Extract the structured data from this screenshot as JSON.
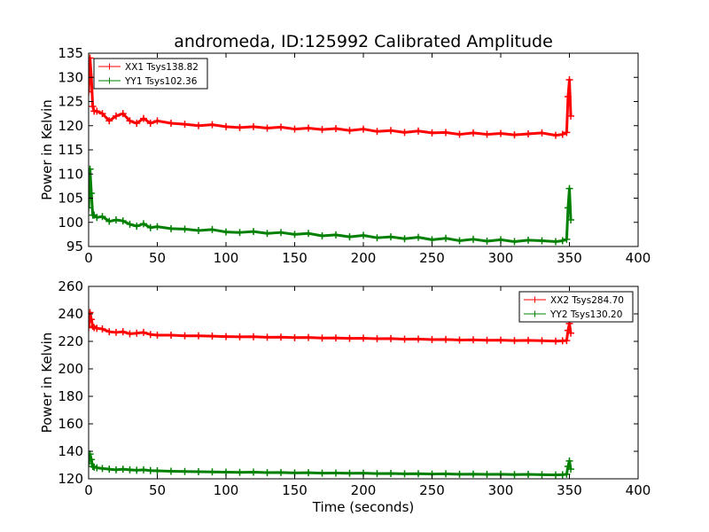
{
  "figure": {
    "title": "andromeda, ID:125992 Calibrated Amplitude"
  },
  "chart_data": [
    {
      "type": "line",
      "title": "andromeda, ID:125992 Calibrated Amplitude",
      "xlabel": "",
      "ylabel": "Power in Kelvin",
      "xlim": [
        0,
        400
      ],
      "ylim": [
        95,
        135
      ],
      "xticks": [
        0,
        50,
        100,
        150,
        200,
        250,
        300,
        350,
        400
      ],
      "yticks": [
        95,
        100,
        105,
        110,
        115,
        120,
        125,
        130,
        135
      ],
      "grid": false,
      "legend_position": "top-left",
      "series": [
        {
          "name": "XX1 Tsys138.82",
          "color": "#ff0000",
          "marker": "+",
          "x": [
            0,
            1,
            2,
            3,
            4,
            6,
            10,
            15,
            20,
            25,
            30,
            35,
            40,
            45,
            50,
            60,
            70,
            80,
            90,
            100,
            110,
            120,
            130,
            140,
            150,
            160,
            170,
            180,
            190,
            200,
            210,
            220,
            230,
            240,
            250,
            260,
            270,
            280,
            290,
            300,
            310,
            320,
            330,
            340,
            345,
            348,
            349,
            350,
            351
          ],
          "y": [
            127,
            134,
            130,
            124,
            123,
            123,
            122.5,
            121,
            122,
            122.5,
            121,
            120.5,
            121.5,
            120.5,
            121,
            120.5,
            120.3,
            120,
            120.2,
            119.8,
            119.6,
            119.8,
            119.5,
            119.7,
            119.3,
            119.5,
            119.2,
            119.4,
            119,
            119.3,
            118.8,
            119,
            118.6,
            118.9,
            118.5,
            118.6,
            118.2,
            118.5,
            118.2,
            118.4,
            118.1,
            118.3,
            118.5,
            118,
            118.2,
            118.6,
            126,
            129.5,
            122
          ]
        },
        {
          "name": "YY1 Tsys102.36",
          "color": "#008000",
          "marker": "+",
          "x": [
            0,
            1,
            2,
            3,
            4,
            6,
            10,
            15,
            20,
            25,
            30,
            35,
            40,
            45,
            50,
            60,
            70,
            80,
            90,
            100,
            110,
            120,
            130,
            140,
            150,
            160,
            170,
            180,
            190,
            200,
            210,
            220,
            230,
            240,
            250,
            260,
            270,
            280,
            290,
            300,
            310,
            320,
            330,
            340,
            345,
            348,
            349,
            350,
            351
          ],
          "y": [
            103,
            111,
            106,
            101.5,
            101.5,
            101,
            101.2,
            100.2,
            100.5,
            100.3,
            99.6,
            99.2,
            99.7,
            98.9,
            99.1,
            98.7,
            98.6,
            98.3,
            98.5,
            98,
            97.9,
            98.1,
            97.7,
            97.9,
            97.5,
            97.7,
            97.2,
            97.4,
            97,
            97.3,
            96.8,
            97,
            96.6,
            96.9,
            96.4,
            96.7,
            96.2,
            96.5,
            96.1,
            96.4,
            96,
            96.3,
            96.2,
            96,
            96.2,
            96.5,
            103,
            107,
            100.5
          ]
        }
      ]
    },
    {
      "type": "line",
      "title": "",
      "xlabel": "Time (seconds)",
      "ylabel": "Power in Kelvin",
      "xlim": [
        0,
        400
      ],
      "ylim": [
        120,
        260
      ],
      "xticks": [
        0,
        50,
        100,
        150,
        200,
        250,
        300,
        350,
        400
      ],
      "yticks": [
        120,
        140,
        160,
        180,
        200,
        220,
        240,
        260
      ],
      "grid": false,
      "legend_position": "top-right",
      "series": [
        {
          "name": "XX2 Tsys284.70",
          "color": "#ff0000",
          "marker": "+",
          "x": [
            0,
            1,
            2,
            3,
            4,
            6,
            10,
            15,
            20,
            25,
            30,
            35,
            40,
            45,
            50,
            60,
            70,
            80,
            90,
            100,
            110,
            120,
            130,
            140,
            150,
            160,
            170,
            180,
            190,
            200,
            210,
            220,
            230,
            240,
            250,
            260,
            270,
            280,
            290,
            300,
            310,
            320,
            330,
            340,
            345,
            348,
            349,
            350,
            351
          ],
          "y": [
            230,
            241,
            236,
            231,
            230,
            229.5,
            229,
            227,
            226.5,
            227,
            225.5,
            226,
            226.5,
            225,
            224.5,
            224.5,
            224,
            224,
            223.8,
            223.5,
            223.3,
            223.4,
            223,
            223.1,
            222.7,
            222.8,
            222.4,
            222.5,
            222.2,
            222.3,
            221.9,
            222,
            221.6,
            221.7,
            221.3,
            221.4,
            221,
            221.1,
            220.8,
            220.9,
            220.6,
            220.7,
            220.5,
            220.2,
            220.4,
            220.6,
            228,
            233,
            226
          ]
        },
        {
          "name": "YY2 Tsys130.20",
          "color": "#008000",
          "marker": "+",
          "x": [
            0,
            1,
            2,
            3,
            4,
            6,
            10,
            15,
            20,
            25,
            30,
            35,
            40,
            45,
            50,
            60,
            70,
            80,
            90,
            100,
            110,
            120,
            130,
            140,
            150,
            160,
            170,
            180,
            190,
            200,
            210,
            220,
            230,
            240,
            250,
            260,
            270,
            280,
            290,
            300,
            310,
            320,
            330,
            340,
            345,
            348,
            349,
            350,
            351
          ],
          "y": [
            131,
            138,
            134,
            129,
            128.5,
            128,
            127.5,
            127,
            126.5,
            127,
            126.5,
            126.2,
            126.5,
            126,
            125.8,
            125.5,
            125.3,
            125.2,
            125,
            124.8,
            124.7,
            124.8,
            124.5,
            124.6,
            124.3,
            124.4,
            124.1,
            124.2,
            124,
            124.1,
            123.8,
            123.9,
            123.6,
            123.7,
            123.5,
            123.6,
            123.3,
            123.4,
            123.2,
            123.3,
            123.1,
            123.2,
            123,
            122.8,
            123,
            123.3,
            129,
            133,
            127
          ]
        }
      ]
    }
  ]
}
